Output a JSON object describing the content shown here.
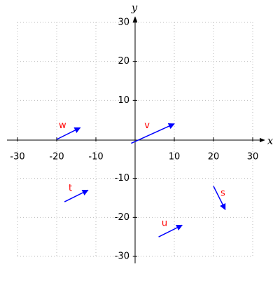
{
  "chart_data": {
    "type": "vector",
    "x_label": "x",
    "y_label": "y",
    "xlim": [
      -30,
      30
    ],
    "ylim": [
      -30,
      30
    ],
    "xticks": [
      -30,
      -20,
      -10,
      10,
      20,
      30
    ],
    "yticks": [
      -30,
      -20,
      -10,
      10,
      20,
      30
    ],
    "grid": true,
    "vector_color": "#0000ff",
    "label_color": "#ff0000",
    "vectors": [
      {
        "label": "w",
        "start": [
          -20,
          0
        ],
        "end": [
          -14,
          3
        ]
      },
      {
        "label": "v",
        "start": [
          -1,
          -1
        ],
        "end": [
          10,
          4
        ]
      },
      {
        "label": "t",
        "start": [
          -18,
          -16
        ],
        "end": [
          -12,
          -13
        ]
      },
      {
        "label": "s",
        "start": [
          20,
          -12
        ],
        "end": [
          23,
          -18
        ]
      },
      {
        "label": "u",
        "start": [
          6,
          -25
        ],
        "end": [
          12,
          -22
        ]
      }
    ]
  }
}
